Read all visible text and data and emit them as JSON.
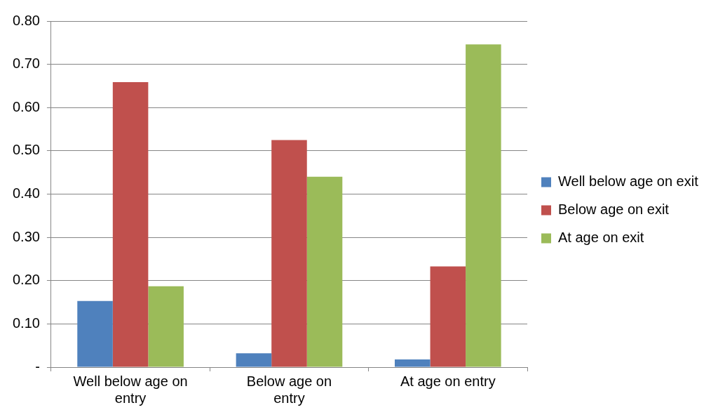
{
  "chart_data": {
    "type": "bar",
    "categories": [
      "Well below age on entry",
      "Below age on entry",
      "At age on entry"
    ],
    "series": [
      {
        "name": "Well below age on exit",
        "color": "#4f81bd",
        "values": [
          0.153,
          0.032,
          0.018
        ]
      },
      {
        "name": "Below age on exit",
        "color": "#c0504d",
        "values": [
          0.659,
          0.525,
          0.233
        ]
      },
      {
        "name": "At age on exit",
        "color": "#9bbb59",
        "values": [
          0.187,
          0.44,
          0.746
        ]
      }
    ],
    "ylim": [
      0,
      0.8
    ],
    "yticks": [
      {
        "value": 0,
        "label": "-"
      },
      {
        "value": 0.1,
        "label": "0.10"
      },
      {
        "value": 0.2,
        "label": "0.20"
      },
      {
        "value": 0.3,
        "label": "0.30"
      },
      {
        "value": 0.4,
        "label": "0.40"
      },
      {
        "value": 0.5,
        "label": "0.50"
      },
      {
        "value": 0.6,
        "label": "0.60"
      },
      {
        "value": 0.7,
        "label": "0.70"
      },
      {
        "value": 0.8,
        "label": "0.80"
      }
    ],
    "grid": "y",
    "legend": "right"
  }
}
